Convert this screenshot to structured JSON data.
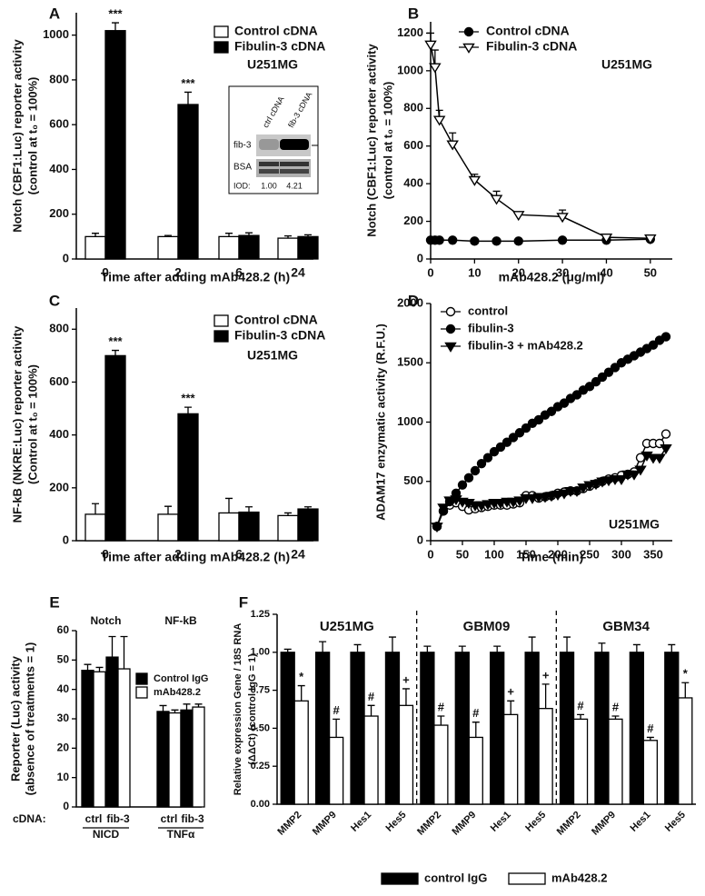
{
  "chart_data": [
    {
      "type": "bar",
      "panel_label": "A",
      "ylabel": [
        "Notch (CBF1:Luc) reporter activity",
        "(control at t₀ = 100%)"
      ],
      "xlabel": "Time after adding mAb428.2 (h)",
      "categories": [
        "0",
        "2",
        "6",
        "24"
      ],
      "series": [
        {
          "name": "Control cDNA",
          "color": "#ffffff",
          "values": [
            100,
            100,
            100,
            93
          ],
          "errors": [
            15,
            5,
            15,
            10
          ]
        },
        {
          "name": "Fibulin-3 cDNA",
          "color": "#000000",
          "values": [
            1020,
            690,
            105,
            100
          ],
          "errors": [
            35,
            55,
            12,
            8
          ],
          "significance": [
            "***",
            "***",
            null,
            null
          ]
        }
      ],
      "ylim": [
        0,
        1100
      ],
      "yticks": [
        0,
        200,
        400,
        600,
        800,
        1000
      ],
      "annotation": "U251MG",
      "inset": {
        "columns": [
          "ctrl cDNA",
          "fib-3 cDNA"
        ],
        "rows": [
          "fib-3",
          "BSA"
        ],
        "iod_label": "IOD:",
        "iod": [
          {
            "value": 1,
            "label": "1.00"
          },
          {
            "value": 4.21,
            "label": "4.21"
          }
        ]
      }
    },
    {
      "type": "line",
      "panel_label": "B",
      "ylabel": [
        "Notch (CBF1:Luc) reporter activity",
        "(control at t₀ = 100%)"
      ],
      "xlabel": "mAb428.2 (μg/ml)",
      "x": [
        0,
        1,
        2,
        5,
        10,
        15,
        20,
        30,
        40,
        50
      ],
      "series": [
        {
          "name": "Control cDNA",
          "color": "#000000",
          "marker": "circle",
          "marker_fill": "#000000",
          "values": [
            100,
            100,
            100,
            100,
            95,
            95,
            95,
            100,
            100,
            105
          ]
        },
        {
          "name": "Fibulin-3 cDNA",
          "color": "#000000",
          "marker": "triangle-down",
          "marker_fill": "#ffffff",
          "values": [
            1140,
            1020,
            740,
            610,
            420,
            320,
            235,
            225,
            115,
            110
          ],
          "errors": [
            60,
            90,
            50,
            60,
            30,
            40,
            15,
            35,
            10,
            10
          ]
        }
      ],
      "xlim": [
        0,
        55
      ],
      "xticks": [
        0,
        10,
        20,
        30,
        40,
        50
      ],
      "ylim": [
        0,
        1260
      ],
      "yticks": [
        0,
        200,
        400,
        600,
        800,
        1000,
        1200
      ],
      "annotation": "U251MG"
    },
    {
      "type": "bar",
      "panel_label": "C",
      "ylabel": [
        "NF-kB (NKRE:Luc) reporter activity",
        "(Control at t₀ = 100%)"
      ],
      "xlabel": "Time after adding mAb428.2 (h)",
      "categories": [
        "0",
        "2",
        "6",
        "24"
      ],
      "series": [
        {
          "name": "Control cDNA",
          "color": "#ffffff",
          "values": [
            100,
            100,
            105,
            95
          ],
          "errors": [
            40,
            30,
            55,
            10
          ]
        },
        {
          "name": "Fibulin-3 cDNA",
          "color": "#000000",
          "values": [
            700,
            480,
            108,
            120
          ],
          "errors": [
            20,
            25,
            20,
            8
          ],
          "significance": [
            "***",
            "***",
            null,
            null
          ]
        }
      ],
      "ylim": [
        0,
        880
      ],
      "yticks": [
        0,
        200,
        400,
        600,
        800
      ],
      "annotation": "U251MG"
    },
    {
      "type": "line",
      "panel_label": "D",
      "ylabel": [
        "ADAM17 enzymatic activity (R.F.U.)"
      ],
      "xlabel": "Time (min)",
      "x": [
        10,
        20,
        30,
        40,
        50,
        60,
        70,
        80,
        90,
        100,
        110,
        120,
        130,
        140,
        150,
        160,
        170,
        180,
        190,
        200,
        210,
        220,
        230,
        240,
        250,
        260,
        270,
        280,
        290,
        300,
        310,
        320,
        330,
        340,
        350,
        360,
        370
      ],
      "series": [
        {
          "name": "control",
          "color": "#000000",
          "marker": "circle",
          "marker_fill": "#ffffff",
          "values": [
            120,
            250,
            300,
            320,
            290,
            260,
            270,
            280,
            290,
            300,
            300,
            300,
            310,
            320,
            380,
            380,
            360,
            370,
            380,
            400,
            410,
            420,
            420,
            440,
            460,
            480,
            500,
            520,
            530,
            550,
            560,
            580,
            700,
            820,
            820,
            820,
            900
          ]
        },
        {
          "name": "fibulin-3",
          "color": "#000000",
          "marker": "circle",
          "marker_fill": "#000000",
          "values": [
            120,
            250,
            330,
            400,
            470,
            530,
            590,
            650,
            700,
            750,
            790,
            830,
            870,
            910,
            950,
            990,
            1020,
            1060,
            1090,
            1130,
            1160,
            1200,
            1230,
            1270,
            1300,
            1340,
            1380,
            1420,
            1460,
            1500,
            1530,
            1560,
            1590,
            1620,
            1650,
            1690,
            1720
          ]
        },
        {
          "name": "fibulin-3 + mAb428.2",
          "color": "#000000",
          "marker": "triangle-down",
          "marker_fill": "#000000",
          "values": [
            120,
            280,
            340,
            350,
            330,
            320,
            300,
            300,
            310,
            320,
            320,
            330,
            330,
            340,
            360,
            360,
            370,
            370,
            380,
            390,
            400,
            420,
            420,
            450,
            470,
            480,
            500,
            510,
            520,
            520,
            560,
            560,
            600,
            720,
            700,
            700,
            780
          ]
        }
      ],
      "xlim": [
        0,
        380
      ],
      "xticks": [
        0,
        50,
        100,
        150,
        200,
        250,
        300,
        350
      ],
      "ylim": [
        0,
        2000
      ],
      "yticks": [
        0,
        500,
        1000,
        1500,
        2000
      ],
      "annotation": "U251MG"
    },
    {
      "type": "bar",
      "panel_label": "E",
      "ylabel": [
        "Reporter (Luc) activity",
        "(absence of treatments = 1)"
      ],
      "category_label": "cDNA:",
      "categories": [
        "ctrl",
        "fib-3",
        "ctrl",
        "fib-3"
      ],
      "groups": [
        {
          "name": "NICD",
          "header": "Notch"
        },
        {
          "name": "TNFα",
          "header": "NF-kB"
        }
      ],
      "series": [
        {
          "name": "Control IgG",
          "color": "#000000",
          "values": [
            46.5,
            51,
            32.5,
            33
          ],
          "errors": [
            2,
            7,
            2,
            2
          ]
        },
        {
          "name": "mAb428.2",
          "color": "#ffffff",
          "values": [
            46,
            47,
            32,
            34
          ],
          "errors": [
            1.5,
            11,
            1,
            1
          ]
        }
      ],
      "ylim": [
        0,
        60
      ],
      "yticks": [
        0,
        10,
        20,
        30,
        40,
        50,
        60
      ]
    },
    {
      "type": "bar",
      "panel_label": "F",
      "ylabel": [
        "Relative expression Gene / 18S RNA",
        "(ΔΔCt) (control  IgG = 1)"
      ],
      "categories": [
        "MMP2",
        "MMP9",
        "Hes1",
        "Hes5",
        "MMP2",
        "MMP9",
        "Hes1",
        "Hes5",
        "MMP2",
        "MMP9",
        "Hes1",
        "Hes5"
      ],
      "groups": [
        {
          "header": "U251MG"
        },
        {
          "header": "GBM09"
        },
        {
          "header": "GBM34"
        }
      ],
      "series": [
        {
          "name": "control IgG",
          "color": "#000000",
          "values": [
            1,
            1,
            1,
            1,
            1,
            1,
            1,
            1,
            1,
            1,
            1,
            1
          ],
          "errors": [
            0.02,
            0.07,
            0.05,
            0.1,
            0.04,
            0.04,
            0.04,
            0.1,
            0.1,
            0.06,
            0.05,
            0.05
          ]
        },
        {
          "name": "mAb428.2",
          "color": "#ffffff",
          "values": [
            0.68,
            0.44,
            0.58,
            0.65,
            0.52,
            0.44,
            0.59,
            0.63,
            0.56,
            0.56,
            0.42,
            0.7
          ],
          "errors": [
            0.1,
            0.12,
            0.07,
            0.11,
            0.06,
            0.1,
            0.09,
            0.16,
            0.03,
            0.02,
            0.02,
            0.1
          ],
          "significance": [
            "*",
            "#",
            "#",
            "+",
            "#",
            "#",
            "+",
            "+",
            "#",
            "#",
            "#",
            "*"
          ]
        }
      ],
      "ylim": [
        0,
        1.25
      ],
      "yticks": [
        {
          "value": 0,
          "label": "0.00"
        },
        {
          "value": 0.25,
          "label": "0.25"
        },
        {
          "value": 0.5,
          "label": "0.50"
        },
        {
          "value": 0.75,
          "label": "0.75"
        },
        {
          "value": 1,
          "label": "1.00"
        },
        {
          "value": 1.25,
          "label": "1.25"
        }
      ]
    }
  ]
}
